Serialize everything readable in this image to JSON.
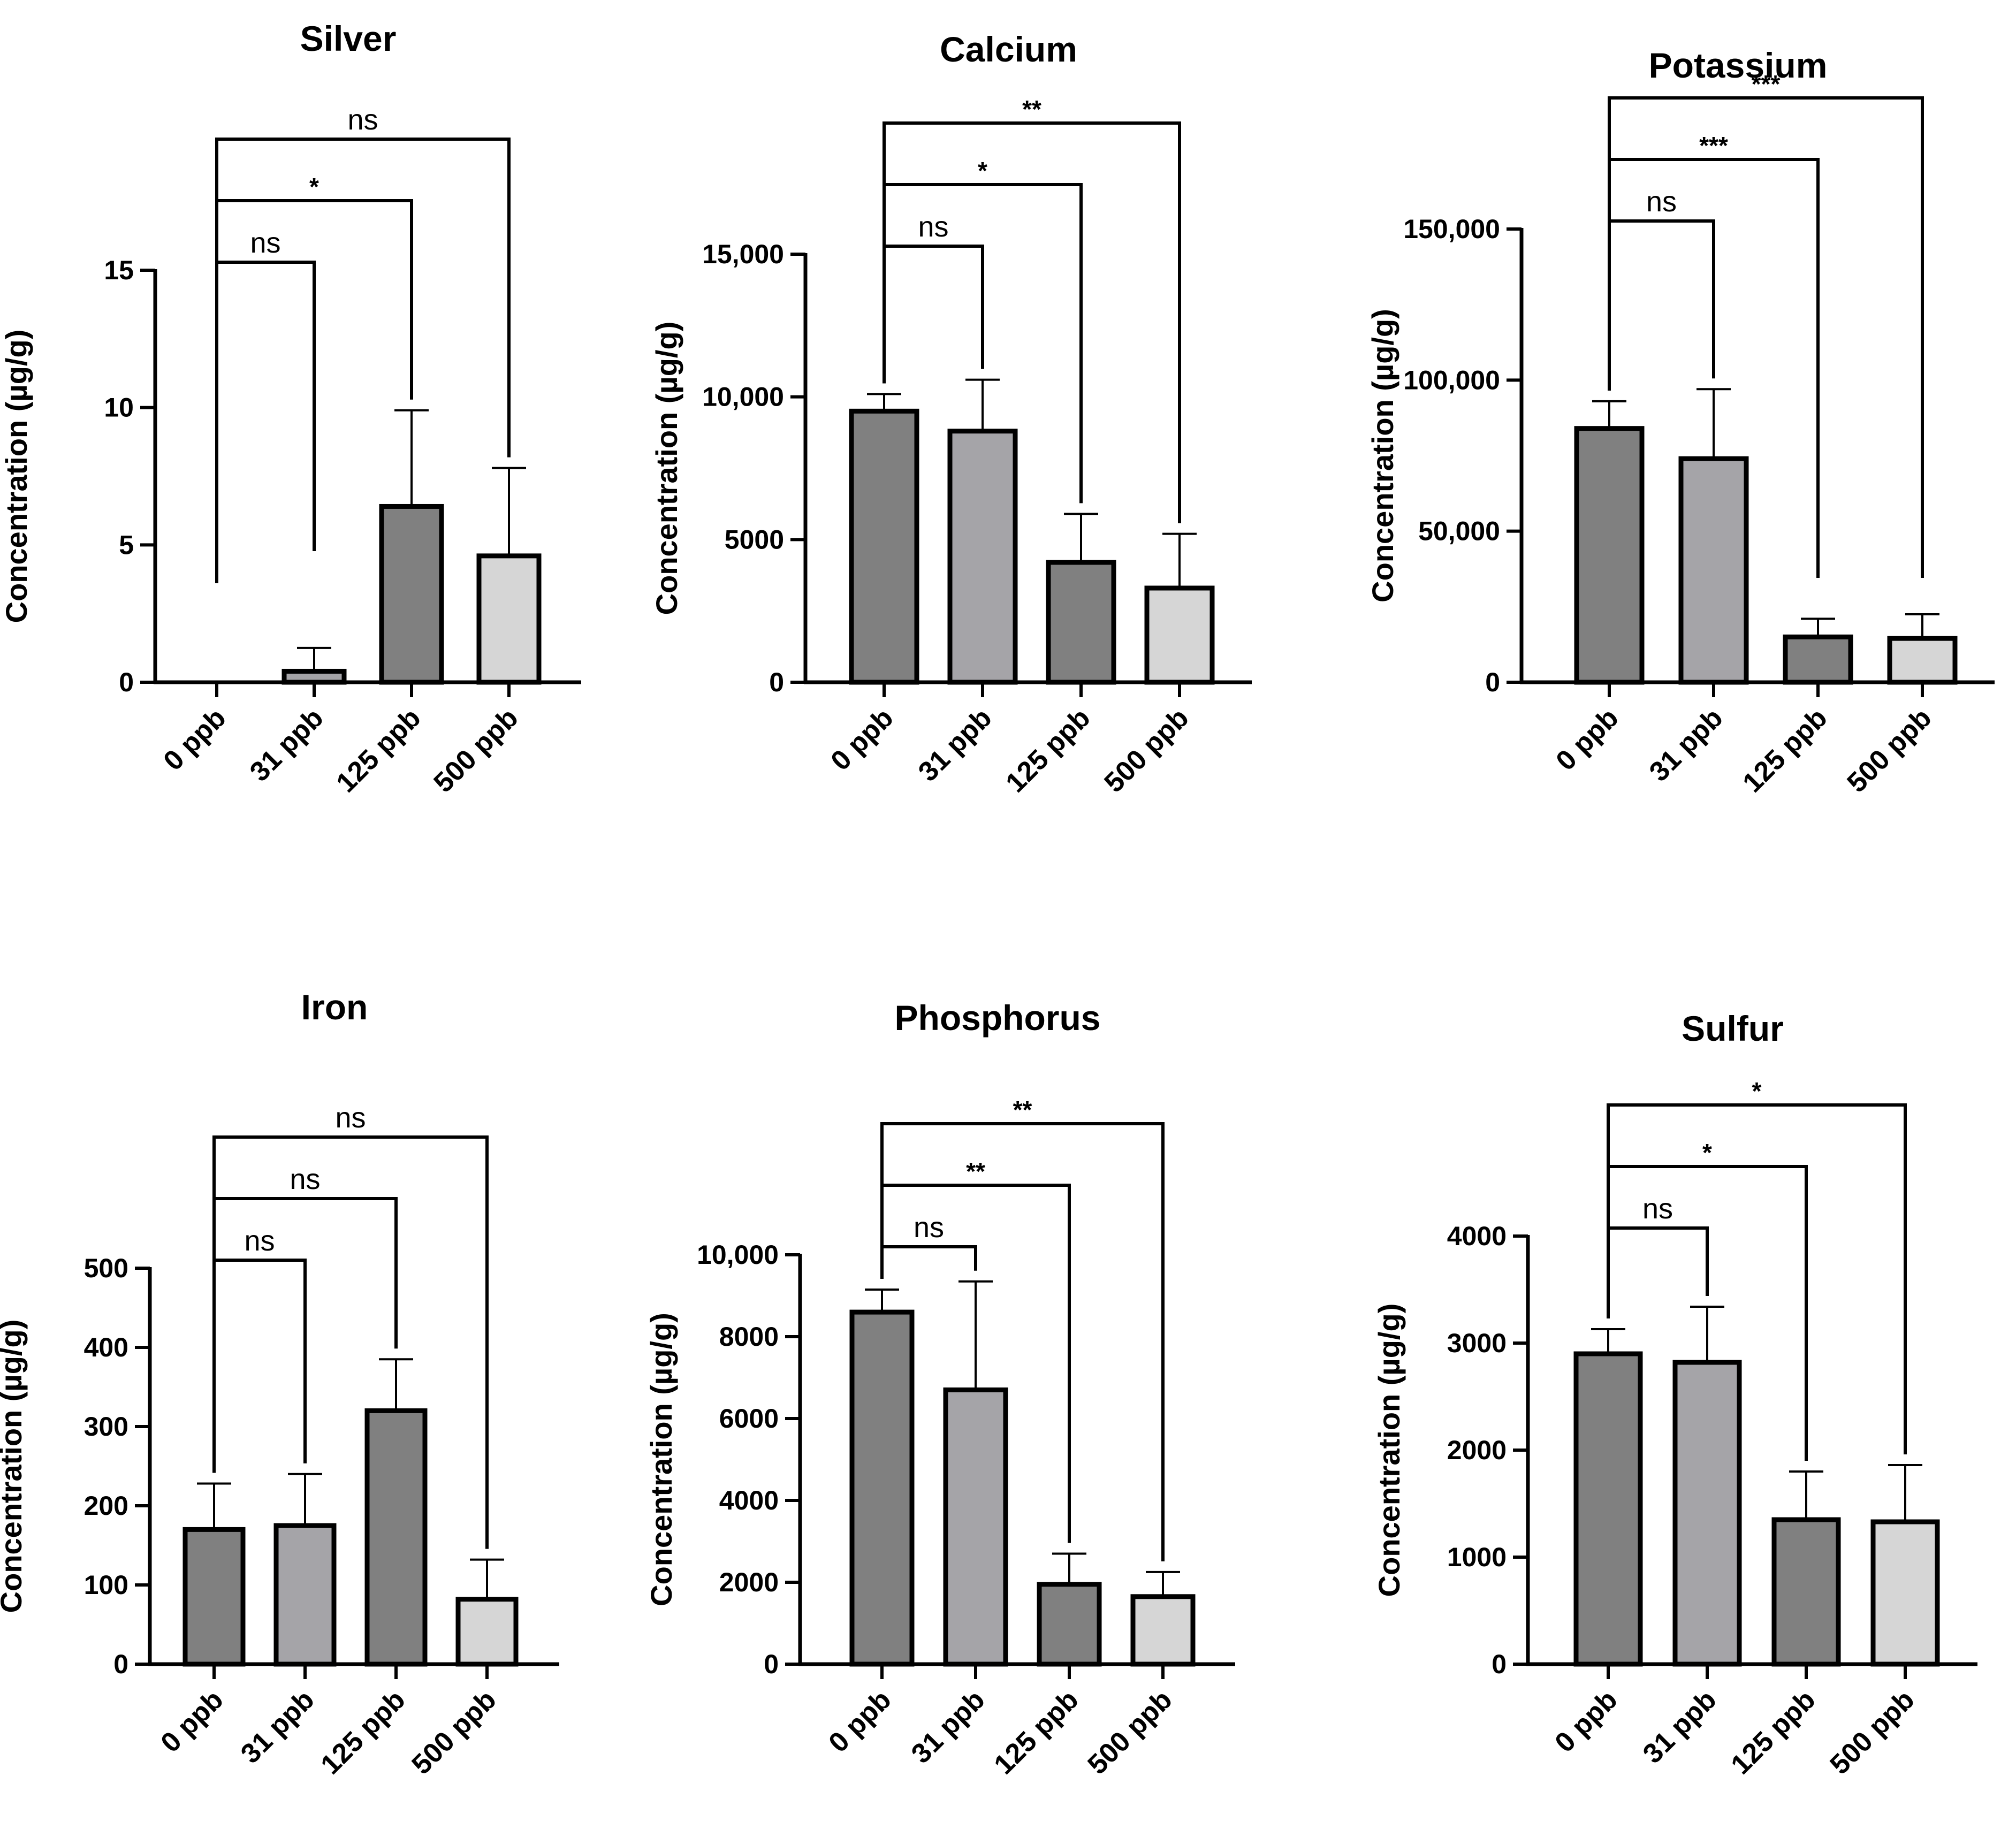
{
  "chart_data": [
    {
      "type": "bar",
      "title": "Silver",
      "ylabel": "Concentration (µg/g)",
      "categories": [
        "0 ppb",
        "31 ppb",
        "125 ppb",
        "500 ppb"
      ],
      "values": [
        0,
        0.4,
        6.4,
        4.6
      ],
      "errors": [
        0,
        0.85,
        3.5,
        3.2
      ],
      "ylim": [
        0,
        15
      ],
      "yticks": [
        0,
        5,
        10,
        15
      ],
      "ytick_labels": [
        "0",
        "5",
        "10",
        "15"
      ],
      "bar_colors": [
        "#808080",
        "#a5a4a8",
        "#808080",
        "#d6d6d6"
      ],
      "comparisons": [
        {
          "from": "0 ppb",
          "to": "31 ppb",
          "label": "ns"
        },
        {
          "from": "0 ppb",
          "to": "125 ppb",
          "label": "*"
        },
        {
          "from": "0 ppb",
          "to": "500 ppb",
          "label": "ns"
        }
      ]
    },
    {
      "type": "bar",
      "title": "Calcium",
      "ylabel": "Concentration (µg/g)",
      "categories": [
        "0 ppb",
        "31 ppb",
        "125 ppb",
        "500 ppb"
      ],
      "values": [
        9500,
        8800,
        4200,
        3300
      ],
      "errors": [
        600,
        1800,
        1700,
        1900
      ],
      "ylim": [
        0,
        15000
      ],
      "yticks": [
        0,
        5000,
        10000,
        15000
      ],
      "ytick_labels": [
        "0",
        "5000",
        "10,000",
        "15,000"
      ],
      "bar_colors": [
        "#808080",
        "#a5a4a8",
        "#808080",
        "#d6d6d6"
      ],
      "comparisons": [
        {
          "from": "0 ppb",
          "to": "31 ppb",
          "label": "ns"
        },
        {
          "from": "0 ppb",
          "to": "125 ppb",
          "label": "*"
        },
        {
          "from": "0 ppb",
          "to": "500 ppb",
          "label": "**"
        }
      ]
    },
    {
      "type": "bar",
      "title": "Potassium",
      "ylabel": "Concentration (µg/g)",
      "categories": [
        "0 ppb",
        "31 ppb",
        "125 ppb",
        "500 ppb"
      ],
      "values": [
        84000,
        74000,
        15000,
        14500
      ],
      "errors": [
        9000,
        23000,
        6000,
        8000
      ],
      "ylim": [
        0,
        150000
      ],
      "yticks": [
        0,
        50000,
        100000,
        150000
      ],
      "ytick_labels": [
        "0",
        "50,000",
        "100,000",
        "150,000"
      ],
      "bar_colors": [
        "#808080",
        "#a5a4a8",
        "#808080",
        "#d6d6d6"
      ],
      "comparisons": [
        {
          "from": "0 ppb",
          "to": "31 ppb",
          "label": "ns"
        },
        {
          "from": "0 ppb",
          "to": "125 ppb",
          "label": "***"
        },
        {
          "from": "0 ppb",
          "to": "500 ppb",
          "label": "***"
        }
      ]
    },
    {
      "type": "bar",
      "title": "Iron",
      "ylabel": "Concentration (µg/g)",
      "categories": [
        "0 ppb",
        "31 ppb",
        "125 ppb",
        "500 ppb"
      ],
      "values": [
        170,
        175,
        320,
        82
      ],
      "errors": [
        58,
        65,
        65,
        50
      ],
      "ylim": [
        0,
        500
      ],
      "yticks": [
        0,
        100,
        200,
        300,
        400,
        500
      ],
      "ytick_labels": [
        "0",
        "100",
        "200",
        "300",
        "400",
        "500"
      ],
      "bar_colors": [
        "#808080",
        "#a5a4a8",
        "#808080",
        "#d6d6d6"
      ],
      "comparisons": [
        {
          "from": "0 ppb",
          "to": "31 ppb",
          "label": "ns"
        },
        {
          "from": "0 ppb",
          "to": "125 ppb",
          "label": "ns"
        },
        {
          "from": "0 ppb",
          "to": "500 ppb",
          "label": "ns"
        }
      ]
    },
    {
      "type": "bar",
      "title": "Phosphorus",
      "ylabel": "Concentration (µg/g)",
      "categories": [
        "0 ppb",
        "31 ppb",
        "125 ppb",
        "500 ppb"
      ],
      "values": [
        8600,
        6700,
        1950,
        1650
      ],
      "errors": [
        550,
        2650,
        750,
        600
      ],
      "ylim": [
        0,
        10000
      ],
      "yticks": [
        0,
        2000,
        4000,
        6000,
        8000,
        10000
      ],
      "ytick_labels": [
        "0",
        "2000",
        "4000",
        "6000",
        "8000",
        "10,000"
      ],
      "bar_colors": [
        "#808080",
        "#a5a4a8",
        "#808080",
        "#d6d6d6"
      ],
      "comparisons": [
        {
          "from": "0 ppb",
          "to": "31 ppb",
          "label": "ns"
        },
        {
          "from": "0 ppb",
          "to": "125 ppb",
          "label": "**"
        },
        {
          "from": "0 ppb",
          "to": "500 ppb",
          "label": "**"
        }
      ]
    },
    {
      "type": "bar",
      "title": "Sulfur",
      "ylabel": "Concentration (µg/g)",
      "categories": [
        "0 ppb",
        "31 ppb",
        "125 ppb",
        "500 ppb"
      ],
      "values": [
        2900,
        2820,
        1350,
        1330
      ],
      "errors": [
        230,
        520,
        450,
        530
      ],
      "ylim": [
        0,
        4000
      ],
      "yticks": [
        0,
        1000,
        2000,
        3000,
        4000
      ],
      "ytick_labels": [
        "0",
        "1000",
        "2000",
        "3000",
        "4000"
      ],
      "bar_colors": [
        "#808080",
        "#a5a4a8",
        "#808080",
        "#d6d6d6"
      ],
      "comparisons": [
        {
          "from": "0 ppb",
          "to": "31 ppb",
          "label": "ns"
        },
        {
          "from": "0 ppb",
          "to": "125 ppb",
          "label": "*"
        },
        {
          "from": "0 ppb",
          "to": "500 ppb",
          "label": "*"
        }
      ]
    }
  ]
}
